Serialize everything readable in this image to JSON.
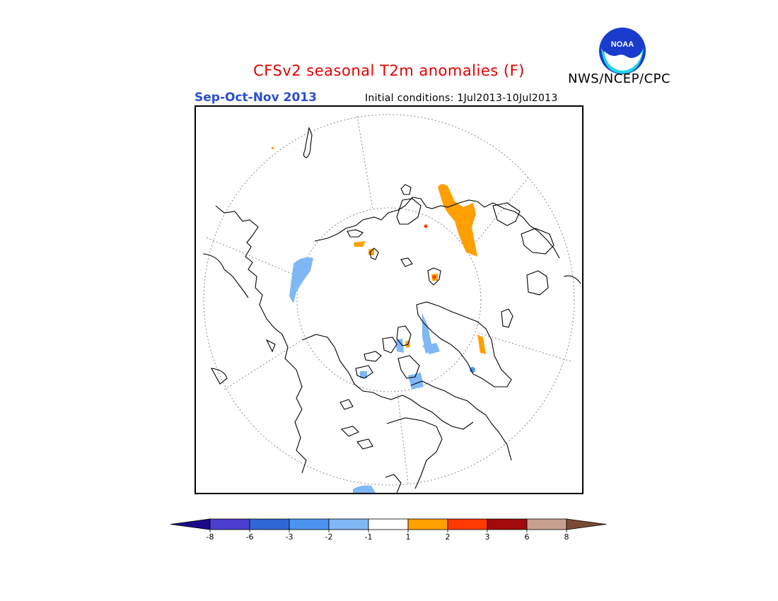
{
  "header": {
    "title": "CFSv2 seasonal T2m anomalies (F)",
    "agency": "NWS/NCEP/CPC",
    "logo_text": "NOAA",
    "season": "Sep-Oct-Nov 2013",
    "initial_conditions": "Initial conditions: 1Jul2013-10Jul2013"
  },
  "colors": {
    "title": "#e00000",
    "season": "#2a4fd0",
    "logo_blue": "#1a3ccc",
    "logo_cyan": "#22d6e8"
  },
  "legend": {
    "bins": [
      {
        "color": "#1a0a8a"
      },
      {
        "color": "#4b3fcf"
      },
      {
        "color": "#2f68d6"
      },
      {
        "color": "#4b94ee"
      },
      {
        "color": "#7fb8f5"
      },
      {
        "color": "#ffffff"
      },
      {
        "color": "#ff9f00"
      },
      {
        "color": "#ff3a00"
      },
      {
        "color": "#a00a0a"
      },
      {
        "color": "#c8a090"
      },
      {
        "color": "#7a4a36"
      }
    ],
    "tick_labels": [
      "-8",
      "-6",
      "-3",
      "-2",
      "-1",
      "1",
      "2",
      "3",
      "6",
      "8"
    ]
  },
  "map": {
    "projection": "north-polar-stereographic",
    "graticule": "dotted"
  }
}
